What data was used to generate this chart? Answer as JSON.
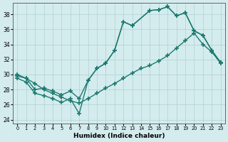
{
  "bg_color": "#d4ecee",
  "grid_color": "#b0d0d2",
  "line_color": "#1e7a70",
  "line_width": 1.0,
  "marker": "+",
  "marker_size": 4,
  "marker_lw": 1.2,
  "xlabel": "Humidex (Indice chaleur)",
  "xlim": [
    -0.5,
    23.5
  ],
  "ylim": [
    23.5,
    39.5
  ],
  "xticks": [
    0,
    1,
    2,
    3,
    4,
    5,
    6,
    7,
    8,
    9,
    10,
    11,
    12,
    13,
    14,
    15,
    16,
    17,
    18,
    19,
    20,
    21,
    22,
    23
  ],
  "yticks": [
    24,
    26,
    28,
    30,
    32,
    34,
    36,
    38
  ],
  "line1_x": [
    0,
    1,
    2,
    3,
    4,
    5,
    6,
    7,
    8,
    9,
    10,
    11,
    12,
    13,
    15,
    16,
    17,
    18,
    19,
    20,
    21,
    22,
    23
  ],
  "line1_y": [
    29.5,
    29.0,
    27.5,
    27.2,
    26.8,
    26.3,
    26.8,
    24.8,
    29.2,
    30.8,
    31.5,
    33.2,
    37.0,
    36.5,
    38.5,
    38.6,
    39.0,
    37.8,
    38.2,
    35.8,
    35.2,
    33.2,
    31.6
  ],
  "line2_x": [
    0,
    1,
    2,
    3,
    4,
    5,
    6,
    7,
    8,
    9,
    10,
    11,
    12,
    13,
    15,
    16,
    17,
    18,
    19,
    20,
    21,
    22,
    23
  ],
  "line2_y": [
    30.0,
    29.5,
    28.0,
    28.2,
    27.8,
    27.3,
    27.8,
    26.8,
    29.2,
    30.8,
    31.5,
    33.2,
    37.0,
    36.5,
    38.5,
    38.6,
    39.0,
    37.8,
    38.2,
    35.8,
    35.2,
    33.2,
    31.6
  ],
  "line3_x": [
    0,
    1,
    2,
    3,
    4,
    5,
    6,
    7,
    8,
    9,
    10,
    11,
    12,
    13,
    14,
    15,
    16,
    17,
    18,
    19,
    20,
    21,
    22,
    23
  ],
  "line3_y": [
    29.8,
    29.5,
    28.8,
    28.0,
    27.5,
    27.0,
    26.5,
    26.2,
    26.8,
    27.5,
    28.2,
    28.8,
    29.5,
    30.2,
    30.8,
    31.2,
    31.8,
    32.5,
    33.5,
    34.5,
    35.5,
    34.0,
    33.0,
    31.5
  ]
}
